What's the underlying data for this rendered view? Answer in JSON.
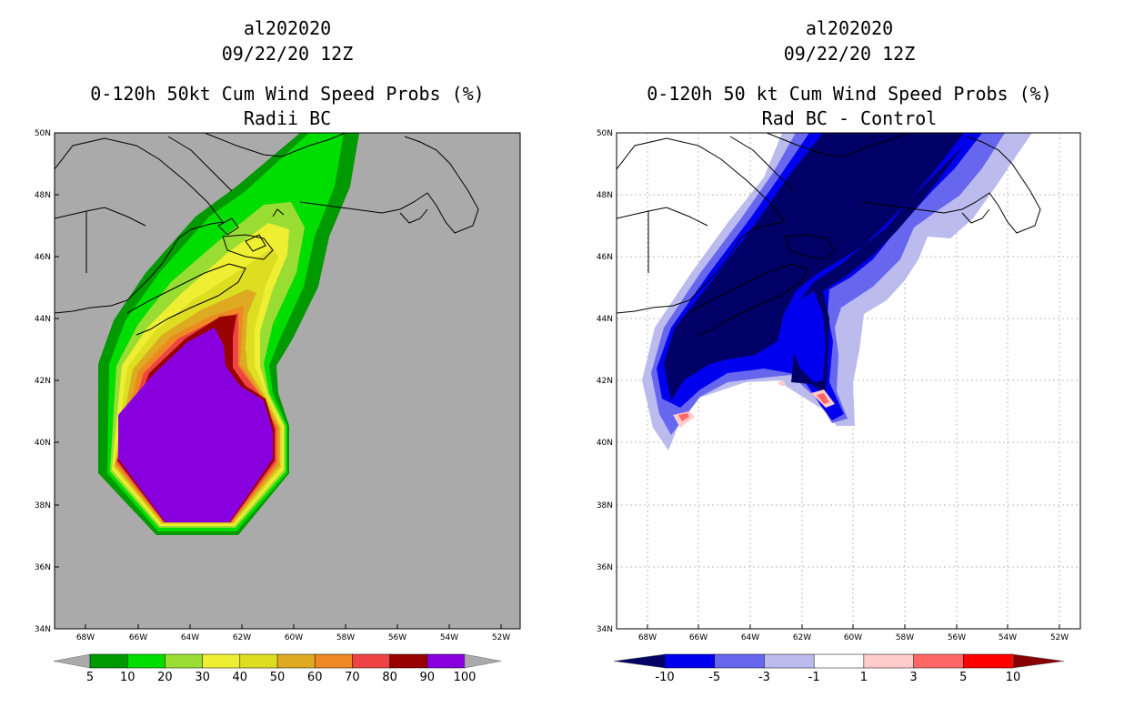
{
  "left": {
    "storm_id": "al202020",
    "date": "09/22/20 12Z",
    "title": "0-120h 50kt Cum Wind Speed Probs (%)",
    "subtitle": "Radii BC",
    "colorbar": {
      "colors": [
        "#009900",
        "#00dd00",
        "#99dd33",
        "#eeee33",
        "#dddd22",
        "#ddaa22",
        "#ee8822",
        "#ee4444",
        "#990000",
        "#8800dd"
      ],
      "labels": [
        "5",
        "10",
        "20",
        "30",
        "40",
        "50",
        "60",
        "70",
        "80",
        "90",
        "100"
      ],
      "end_colors": [
        "#aaaaaa",
        "#aaaaaa"
      ]
    }
  },
  "right": {
    "storm_id": "al202020",
    "date": "09/22/20 12Z",
    "title": "0-120h 50 kt Cum Wind Speed Probs (%)",
    "subtitle": "Rad BC - Control",
    "colorbar": {
      "colors": [
        "#0000ee",
        "#6666ee",
        "#bbbbee",
        "#ffffff",
        "#ffcccc",
        "#ff6666",
        "#ff0000"
      ],
      "labels": [
        "-10",
        "-5",
        "-3",
        "-1",
        "1",
        "3",
        "5",
        "10"
      ],
      "end_colors": [
        "#000066",
        "#880000"
      ]
    }
  },
  "axes": {
    "lat_labels": [
      "50N",
      "48N",
      "46N",
      "44N",
      "42N",
      "40N",
      "38N",
      "36N",
      "34N"
    ],
    "lon_labels": [
      "68W",
      "66W",
      "64W",
      "62W",
      "60W",
      "58W",
      "56W",
      "54W",
      "52W"
    ]
  },
  "colors": {
    "land_background": "#aaaaaa",
    "purple_core": "#8800dd",
    "dark_blue": "#000066",
    "blue": "#0000ee"
  }
}
